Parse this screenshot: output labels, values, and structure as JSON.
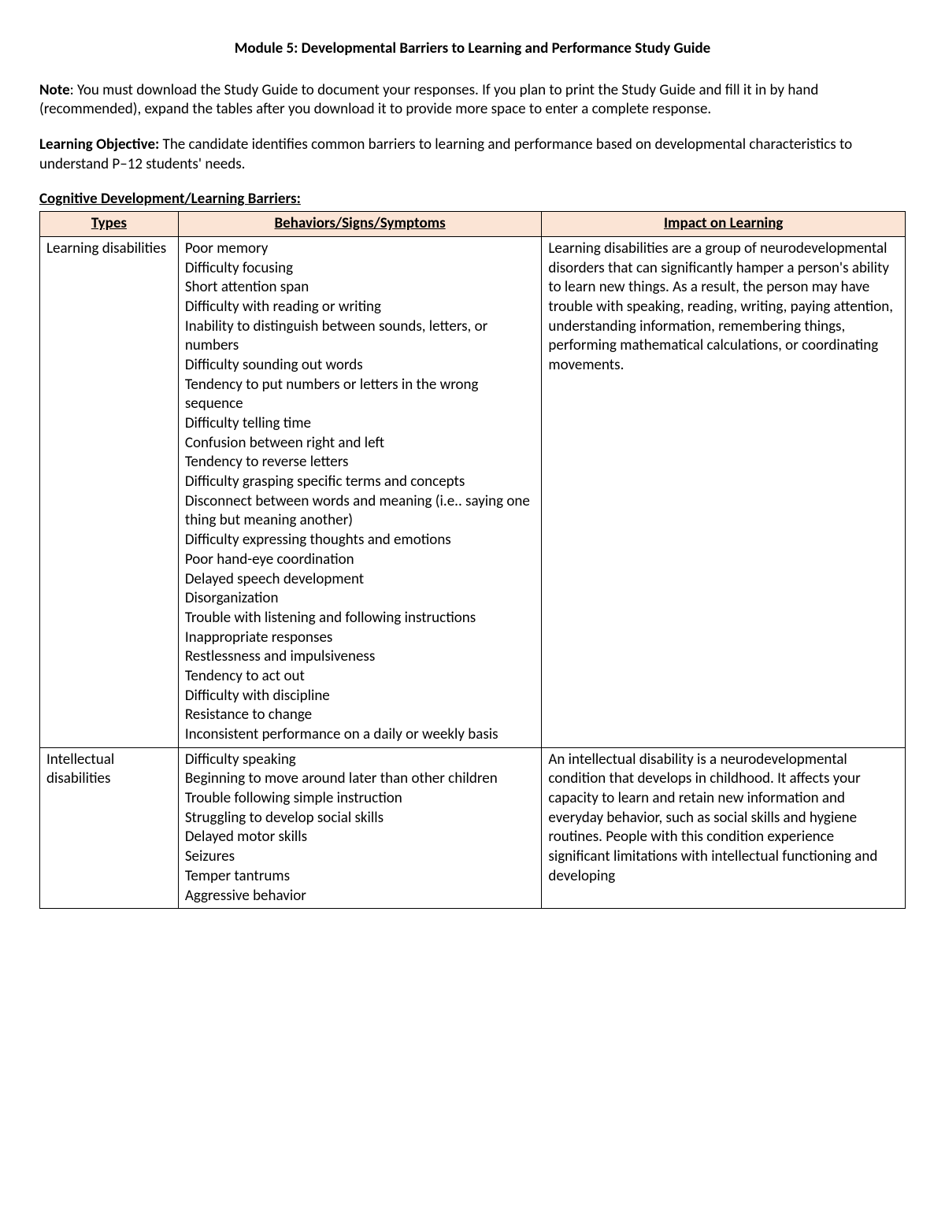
{
  "title": "Module 5: Developmental Barriers to Learning and Performance Study Guide",
  "note_label": "Note",
  "note_text": ": You must download the Study Guide to document your responses. If you plan to print the Study Guide and fill it in by hand (recommended), expand the tables after you download it to provide more space to enter a complete response.",
  "lo_label": "Learning Objective:",
  "lo_text": "  The candidate identifies common barriers to learning and performance based on developmental characteristics to understand P–12 students' needs.",
  "section_heading": "Cognitive Development/Learning Barriers:",
  "table": {
    "header_bg": "#fbe4d5",
    "border_color": "#000000",
    "columns": [
      "Types",
      "Behaviors/Signs/Symptoms",
      "Impact on Learning"
    ],
    "col_widths_pct": [
      16,
      42,
      42
    ],
    "rows": [
      {
        "type": "Learning disabilities",
        "behaviors": [
          "Poor memory",
          "Difficulty focusing",
          "Short attention span",
          "Difficulty with reading or writing",
          "Inability to distinguish between sounds, letters, or numbers",
          "Difficulty sounding out words",
          "Tendency to put numbers or letters in the wrong sequence",
          "Difficulty telling time",
          "Confusion between right and left",
          "Tendency to reverse letters",
          "Difficulty grasping specific terms and concepts",
          "Disconnect between words and meaning (i.e.. saying one thing but meaning another)",
          "Difficulty expressing thoughts and emotions",
          "Poor hand-eye coordination",
          "Delayed speech development",
          "Disorganization",
          "Trouble with listening and following instructions",
          "Inappropriate responses",
          "Restlessness and impulsiveness",
          "Tendency to act out",
          "Difficulty with discipline",
          "Resistance to change",
          "Inconsistent performance on a daily or weekly basis"
        ],
        "impact": "Learning disabilities are a group of neurodevelopmental disorders that can significantly hamper a person's ability to learn new things. As a result, the person may have trouble with speaking, reading, writing, paying attention, understanding information, remembering things, performing mathematical calculations, or coordinating movements."
      },
      {
        "type": "Intellectual disabilities",
        "behaviors": [
          "Difficulty speaking",
          "Beginning to move around later than other children",
          "Trouble following simple instruction",
          "Struggling to develop social skills",
          "Delayed motor skills",
          "Seizures",
          "Temper tantrums",
          "Aggressive behavior"
        ],
        "impact": "An intellectual disability is a neurodevelopmental condition that develops in childhood. It affects your capacity to learn and retain new information and everyday behavior, such as social skills and hygiene routines. People with this condition experience significant limitations with intellectual functioning and developing"
      }
    ]
  }
}
